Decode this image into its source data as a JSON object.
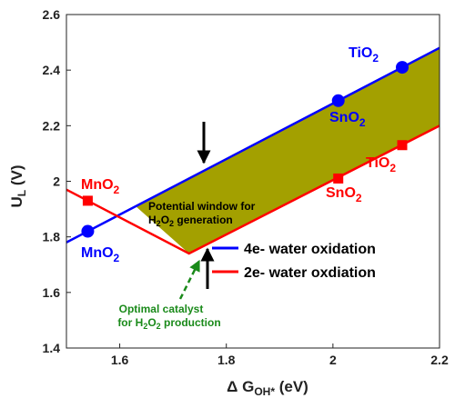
{
  "chart_data": {
    "type": "line",
    "xlabel": {
      "prefix": "Δ G",
      "sub": "OH*",
      "suffix": " (eV)"
    },
    "ylabel": {
      "main": "U",
      "sub": "L",
      "suffix": " (V)"
    },
    "xlim": [
      1.5,
      2.2
    ],
    "ylim": [
      1.4,
      2.6
    ],
    "x_ticks": [
      1.6,
      1.8,
      2.0,
      2.2
    ],
    "x_tick_labels": [
      "1.6",
      "1.8",
      "2",
      "2.2"
    ],
    "y_ticks": [
      1.4,
      1.6,
      1.8,
      2.0,
      2.2,
      2.4,
      2.6
    ],
    "y_tick_labels": [
      "1.4",
      "1.6",
      "1.8",
      "2",
      "2.2",
      "2.4",
      "2.6"
    ],
    "grid": false,
    "legend": "right",
    "series": [
      {
        "name": "4e- water oxidation",
        "color": "#0000ff",
        "marker": "circle",
        "line": [
          [
            1.5,
            1.78
          ],
          [
            2.2,
            2.48
          ]
        ],
        "points": [
          {
            "label": "MnO",
            "sub": "2",
            "x": 1.54,
            "y": 1.82
          },
          {
            "label": "SnO",
            "sub": "2",
            "x": 2.01,
            "y": 2.29
          },
          {
            "label": "TiO",
            "sub": "2",
            "x": 2.13,
            "y": 2.41
          }
        ]
      },
      {
        "name": "2e- water oxdiation",
        "color": "#ff0000",
        "marker": "square",
        "line": [
          [
            1.5,
            1.97
          ],
          [
            1.73,
            1.74
          ],
          [
            2.2,
            2.2
          ]
        ],
        "points": [
          {
            "label": "MnO",
            "sub": "2",
            "x": 1.54,
            "y": 1.93
          },
          {
            "label": "SnO",
            "sub": "2",
            "x": 2.01,
            "y": 2.01
          },
          {
            "label": "TiO",
            "sub": "2",
            "x": 2.13,
            "y": 2.13
          }
        ]
      }
    ],
    "fill_region": {
      "color": "#a3a000",
      "polygon": [
        [
          1.63,
          1.91
        ],
        [
          2.2,
          2.48
        ],
        [
          2.2,
          2.2
        ],
        [
          1.73,
          1.74
        ]
      ]
    },
    "annotations": {
      "window": {
        "line1": "Potential window for",
        "line2_pre": "H",
        "sub1": "2",
        "mid": "O",
        "sub2": "2",
        "line2_post": " generation"
      },
      "optimal": {
        "line1": "Optimal catalyst",
        "line2_pre": "for H",
        "sub1": "2",
        "mid": "O",
        "sub2": "2",
        "line2_post": " production"
      }
    }
  }
}
